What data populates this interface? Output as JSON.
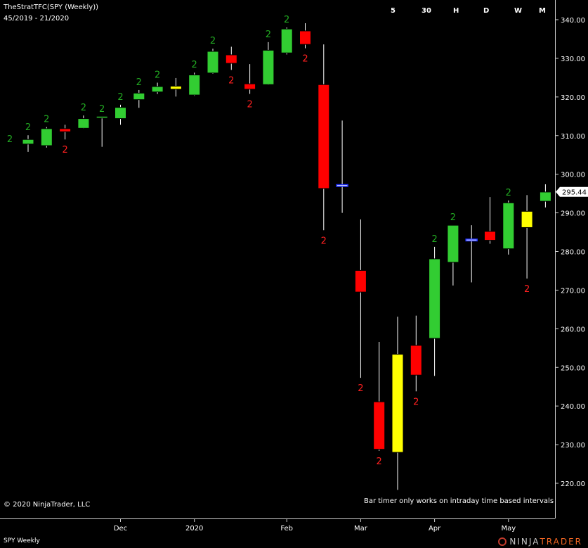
{
  "header": {
    "indicator_title": "TheStratTFC(SPY (Weekly))",
    "date_range": "45/2019 - 21/2020",
    "timeframes": [
      "5",
      "30",
      "H",
      "D",
      "W",
      "M"
    ]
  },
  "footer": {
    "copyright": "© 2020 NinjaTrader, LLC",
    "timer_note": "Bar timer only works on intraday time based intervals",
    "series_label": "SPY Weekly",
    "brand_left": "NINJA",
    "brand_right": "TRADER"
  },
  "colors": {
    "background": "#000000",
    "up": "#32cd32",
    "down": "#ff0000",
    "inside": "#ffff00",
    "doji_blue": "#2233ff",
    "label_up": "#22aa22",
    "label_down": "#ff2020",
    "wick": "#ffffff",
    "last_price_bg": "#ffffff"
  },
  "chart_data": {
    "type": "candlestick",
    "title": "TheStratTFC(SPY (Weekly))",
    "y_axis": {
      "ylim": [
        215,
        344
      ],
      "ticks": [
        220,
        230,
        240,
        250,
        260,
        270,
        280,
        290,
        300,
        310,
        320,
        330,
        340
      ],
      "tick_labels": [
        "220.00",
        "230.00",
        "240.00",
        "250.00",
        "260.00",
        "270.00",
        "280.00",
        "290.00",
        "300.00",
        "310.00",
        "320.00",
        "330.00",
        "340.00"
      ]
    },
    "x_axis": {
      "labels": [
        {
          "text": "Dec",
          "bar": 5
        },
        {
          "text": "2020",
          "bar": 9
        },
        {
          "text": "Feb",
          "bar": 14
        },
        {
          "text": "Mar",
          "bar": 18
        },
        {
          "text": "Apr",
          "bar": 22
        },
        {
          "text": "May",
          "bar": 26
        }
      ]
    },
    "last_price": "295.44",
    "last_price_value": 295.44,
    "grid": false,
    "candles": [
      {
        "open": 307.8,
        "high": 310.1,
        "low": 305.8,
        "close": 309.0,
        "color": "up",
        "label": "2"
      },
      {
        "open": 307.4,
        "high": 312.2,
        "low": 306.9,
        "close": 311.8,
        "color": "up",
        "label": "2"
      },
      {
        "open": 311.8,
        "high": 312.8,
        "low": 309.0,
        "close": 311.0,
        "color": "down",
        "label": "2"
      },
      {
        "open": 311.9,
        "high": 315.2,
        "low": 311.8,
        "close": 314.4,
        "color": "up",
        "label": "2"
      },
      {
        "open": 314.6,
        "high": 314.9,
        "low": 307.1,
        "close": 315.0,
        "color": "up",
        "label": "2"
      },
      {
        "open": 314.4,
        "high": 318.0,
        "low": 312.8,
        "close": 317.3,
        "color": "up",
        "label": "2"
      },
      {
        "open": 319.3,
        "high": 321.8,
        "low": 317.2,
        "close": 321.0,
        "color": "up",
        "label": "2"
      },
      {
        "open": 321.3,
        "high": 323.7,
        "low": 320.8,
        "close": 322.7,
        "color": "up",
        "label": "2"
      },
      {
        "open": 322.0,
        "high": 324.9,
        "low": 320.1,
        "close": 322.8,
        "color": "inside",
        "label": ""
      },
      {
        "open": 320.5,
        "high": 326.3,
        "low": 320.3,
        "close": 325.7,
        "color": "up",
        "label": "2"
      },
      {
        "open": 326.2,
        "high": 332.5,
        "low": 326.0,
        "close": 331.8,
        "color": "up",
        "label": "2"
      },
      {
        "open": 330.9,
        "high": 333.0,
        "low": 327.0,
        "close": 328.7,
        "color": "down",
        "label": "2"
      },
      {
        "open": 323.4,
        "high": 328.5,
        "low": 320.8,
        "close": 322.0,
        "color": "down",
        "label": "2"
      },
      {
        "open": 323.2,
        "high": 334.2,
        "low": 323.1,
        "close": 332.1,
        "color": "up",
        "label": "2"
      },
      {
        "open": 331.4,
        "high": 338.0,
        "low": 331.0,
        "close": 337.6,
        "color": "up",
        "label": "2"
      },
      {
        "open": 337.1,
        "high": 339.1,
        "low": 332.6,
        "close": 333.6,
        "color": "down",
        "label": "2"
      },
      {
        "open": 323.2,
        "high": 333.6,
        "low": 285.5,
        "close": 296.3,
        "color": "down",
        "label": "2"
      },
      {
        "open": 296.9,
        "high": 313.9,
        "low": 290.0,
        "close": 297.3,
        "color": "blue",
        "label": ""
      },
      {
        "open": 275.1,
        "high": 288.3,
        "low": 247.3,
        "close": 269.5,
        "color": "down",
        "label": "2"
      },
      {
        "open": 241.1,
        "high": 256.6,
        "low": 228.4,
        "close": 228.8,
        "color": "down",
        "label": "2"
      },
      {
        "open": 228.0,
        "high": 263.1,
        "low": 218.3,
        "close": 253.4,
        "color": "inside",
        "label": ""
      },
      {
        "open": 255.7,
        "high": 263.4,
        "low": 243.8,
        "close": 248.0,
        "color": "down",
        "label": "2"
      },
      {
        "open": 257.5,
        "high": 281.2,
        "low": 247.8,
        "close": 278.1,
        "color": "up",
        "label": "2"
      },
      {
        "open": 277.2,
        "high": 286.8,
        "low": 271.2,
        "close": 286.8,
        "color": "up",
        "label": "2"
      },
      {
        "open": 282.9,
        "high": 286.8,
        "low": 272.0,
        "close": 283.2,
        "color": "blue",
        "label": ""
      },
      {
        "open": 285.2,
        "high": 294.1,
        "low": 282.0,
        "close": 282.9,
        "color": "down",
        "label": ""
      },
      {
        "open": 280.7,
        "high": 293.2,
        "low": 279.2,
        "close": 292.6,
        "color": "up",
        "label": "2"
      },
      {
        "open": 290.4,
        "high": 294.6,
        "low": 273.0,
        "close": 286.2,
        "color": "inside",
        "label": "2"
      },
      {
        "open": 293.0,
        "high": 297.4,
        "low": 291.4,
        "close": 295.4,
        "color": "up",
        "label": ""
      }
    ]
  }
}
